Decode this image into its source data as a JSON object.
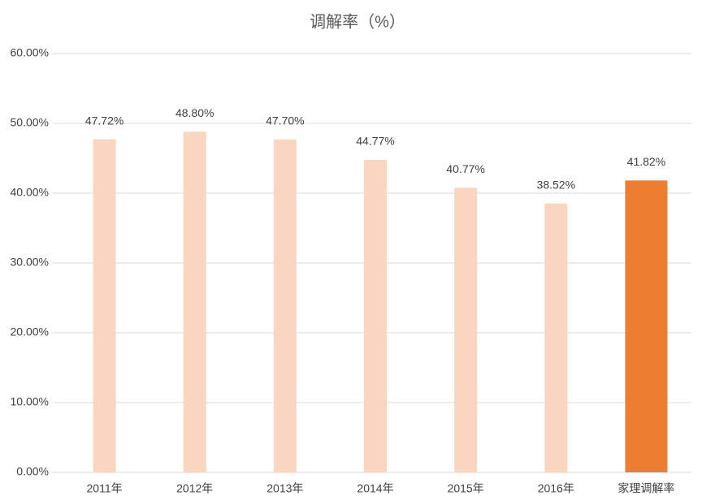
{
  "chart_data": {
    "type": "bar",
    "title": "调解率（%）",
    "categories": [
      "2011年",
      "2012年",
      "2013年",
      "2014年",
      "2015年",
      "2016年",
      "家理调解率"
    ],
    "values": [
      47.72,
      48.8,
      47.7,
      44.77,
      40.77,
      38.52,
      41.82
    ],
    "value_labels": [
      "47.72%",
      "48.80%",
      "47.70%",
      "44.77%",
      "40.77%",
      "38.52%",
      "41.82%"
    ],
    "colors": [
      "#f9d6bf",
      "#f9d6bf",
      "#f9d6bf",
      "#f9d6bf",
      "#f9d6bf",
      "#f9d6bf",
      "#ed7d31"
    ],
    "ylim": [
      0,
      60
    ],
    "yticks": [
      {
        "value": 0,
        "label": "0.00%"
      },
      {
        "value": 10,
        "label": "10.00%"
      },
      {
        "value": 20,
        "label": "20.00%"
      },
      {
        "value": 30,
        "label": "30.00%"
      },
      {
        "value": 40,
        "label": "40.00%"
      },
      {
        "value": 50,
        "label": "50.00%"
      },
      {
        "value": 60,
        "label": "60.00%"
      }
    ],
    "grid": true
  }
}
